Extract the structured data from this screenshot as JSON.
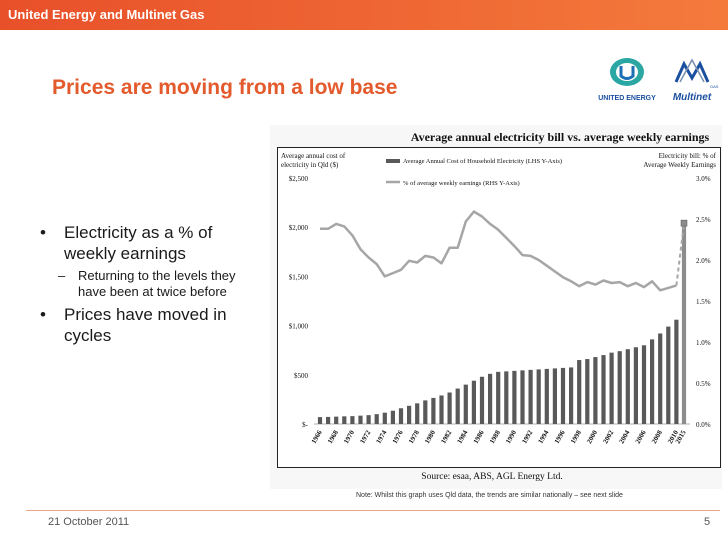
{
  "header": {
    "title": "United Energy and Multinet Gas"
  },
  "slide": {
    "title": "Prices are moving from a low base"
  },
  "logos": {
    "united_energy": "UNITED ENERGY",
    "multinet": "Multinet",
    "multinet_small": "GAS"
  },
  "bullets": {
    "b1": "Electricity as a % of weekly earnings",
    "sub": "Returning to the levels they have been at twice before",
    "b2": "Prices have moved in cycles"
  },
  "note": "Note:  Whilst this graph uses Qld data, the trends are similar nationally – see next slide",
  "footer": {
    "date": "21 October 2011",
    "page": "5"
  },
  "colors": {
    "accent": "#e8502a",
    "title": "#e35a2c",
    "bar": "#595959",
    "line": "#a6a6a6"
  },
  "chart_data": {
    "type": "bar",
    "title": "Average annual electricity bill vs. average weekly earnings",
    "left_axis_label": [
      "Average annual cost of",
      "electricity in Qld ($)"
    ],
    "right_axis_label": [
      "Electricity bill: % of",
      "Average Weekly Earnings"
    ],
    "source": "Source:  esaa, ABS, AGL Energy Ltd.",
    "legend": [
      "Average Annual Cost of Household Electricity (LHS Y-Axis)",
      "% of average weekly earnings (RHS Y-Axis)"
    ],
    "y_left_ticks": [
      "$-",
      "$500",
      "$1,000",
      "$1,500",
      "$2,000",
      "$2,500"
    ],
    "y_right_ticks": [
      "0.0%",
      "0.5%",
      "1.0%",
      "1.5%",
      "2.0%",
      "2.5%",
      "3.0%"
    ],
    "ylim_left": [
      0,
      2500
    ],
    "ylim_right": [
      0,
      3.0
    ],
    "x_tick_labels": [
      "1966",
      "1968",
      "1970",
      "1972",
      "1974",
      "1976",
      "1978",
      "1980",
      "1982",
      "1984",
      "1986",
      "1988",
      "1990",
      "1992",
      "1994",
      "1996",
      "1998",
      "2000",
      "2002",
      "2004",
      "2006",
      "2008",
      "2010",
      "2015"
    ],
    "categories": [
      "1966",
      "1967",
      "1968",
      "1969",
      "1970",
      "1971",
      "1972",
      "1973",
      "1974",
      "1975",
      "1976",
      "1977",
      "1978",
      "1979",
      "1980",
      "1981",
      "1982",
      "1983",
      "1984",
      "1985",
      "1986",
      "1987",
      "1988",
      "1989",
      "1990",
      "1991",
      "1992",
      "1993",
      "1994",
      "1995",
      "1996",
      "1997",
      "1998",
      "1999",
      "2000",
      "2001",
      "2002",
      "2003",
      "2004",
      "2005",
      "2006",
      "2007",
      "2008",
      "2009",
      "2010",
      "2015"
    ],
    "series": [
      {
        "name": "Average Annual Cost of Household Electricity (LHS Y-Axis)",
        "axis": "left",
        "type": "bar",
        "values": [
          70,
          72,
          75,
          78,
          80,
          85,
          90,
          100,
          115,
          135,
          160,
          185,
          210,
          240,
          265,
          290,
          320,
          360,
          400,
          440,
          480,
          510,
          530,
          535,
          540,
          545,
          550,
          555,
          560,
          565,
          570,
          575,
          650,
          660,
          680,
          700,
          725,
          740,
          760,
          780,
          800,
          860,
          920,
          990,
          1060,
          2050
        ]
      },
      {
        "name": "% of average weekly earnings (RHS Y-Axis)",
        "axis": "right",
        "type": "line",
        "values": [
          2.38,
          2.38,
          2.44,
          2.41,
          2.3,
          2.13,
          2.03,
          1.95,
          1.8,
          1.84,
          1.88,
          1.99,
          1.97,
          2.05,
          2.03,
          1.96,
          2.15,
          2.15,
          2.47,
          2.59,
          2.53,
          2.44,
          2.37,
          2.27,
          2.17,
          2.06,
          2.05,
          2.0,
          1.93,
          1.86,
          1.79,
          1.74,
          1.68,
          1.73,
          1.7,
          1.75,
          1.72,
          1.73,
          1.68,
          1.72,
          1.67,
          1.74,
          1.63,
          1.66,
          1.69,
          2.45
        ],
        "dashed_from": "2010"
      }
    ]
  }
}
